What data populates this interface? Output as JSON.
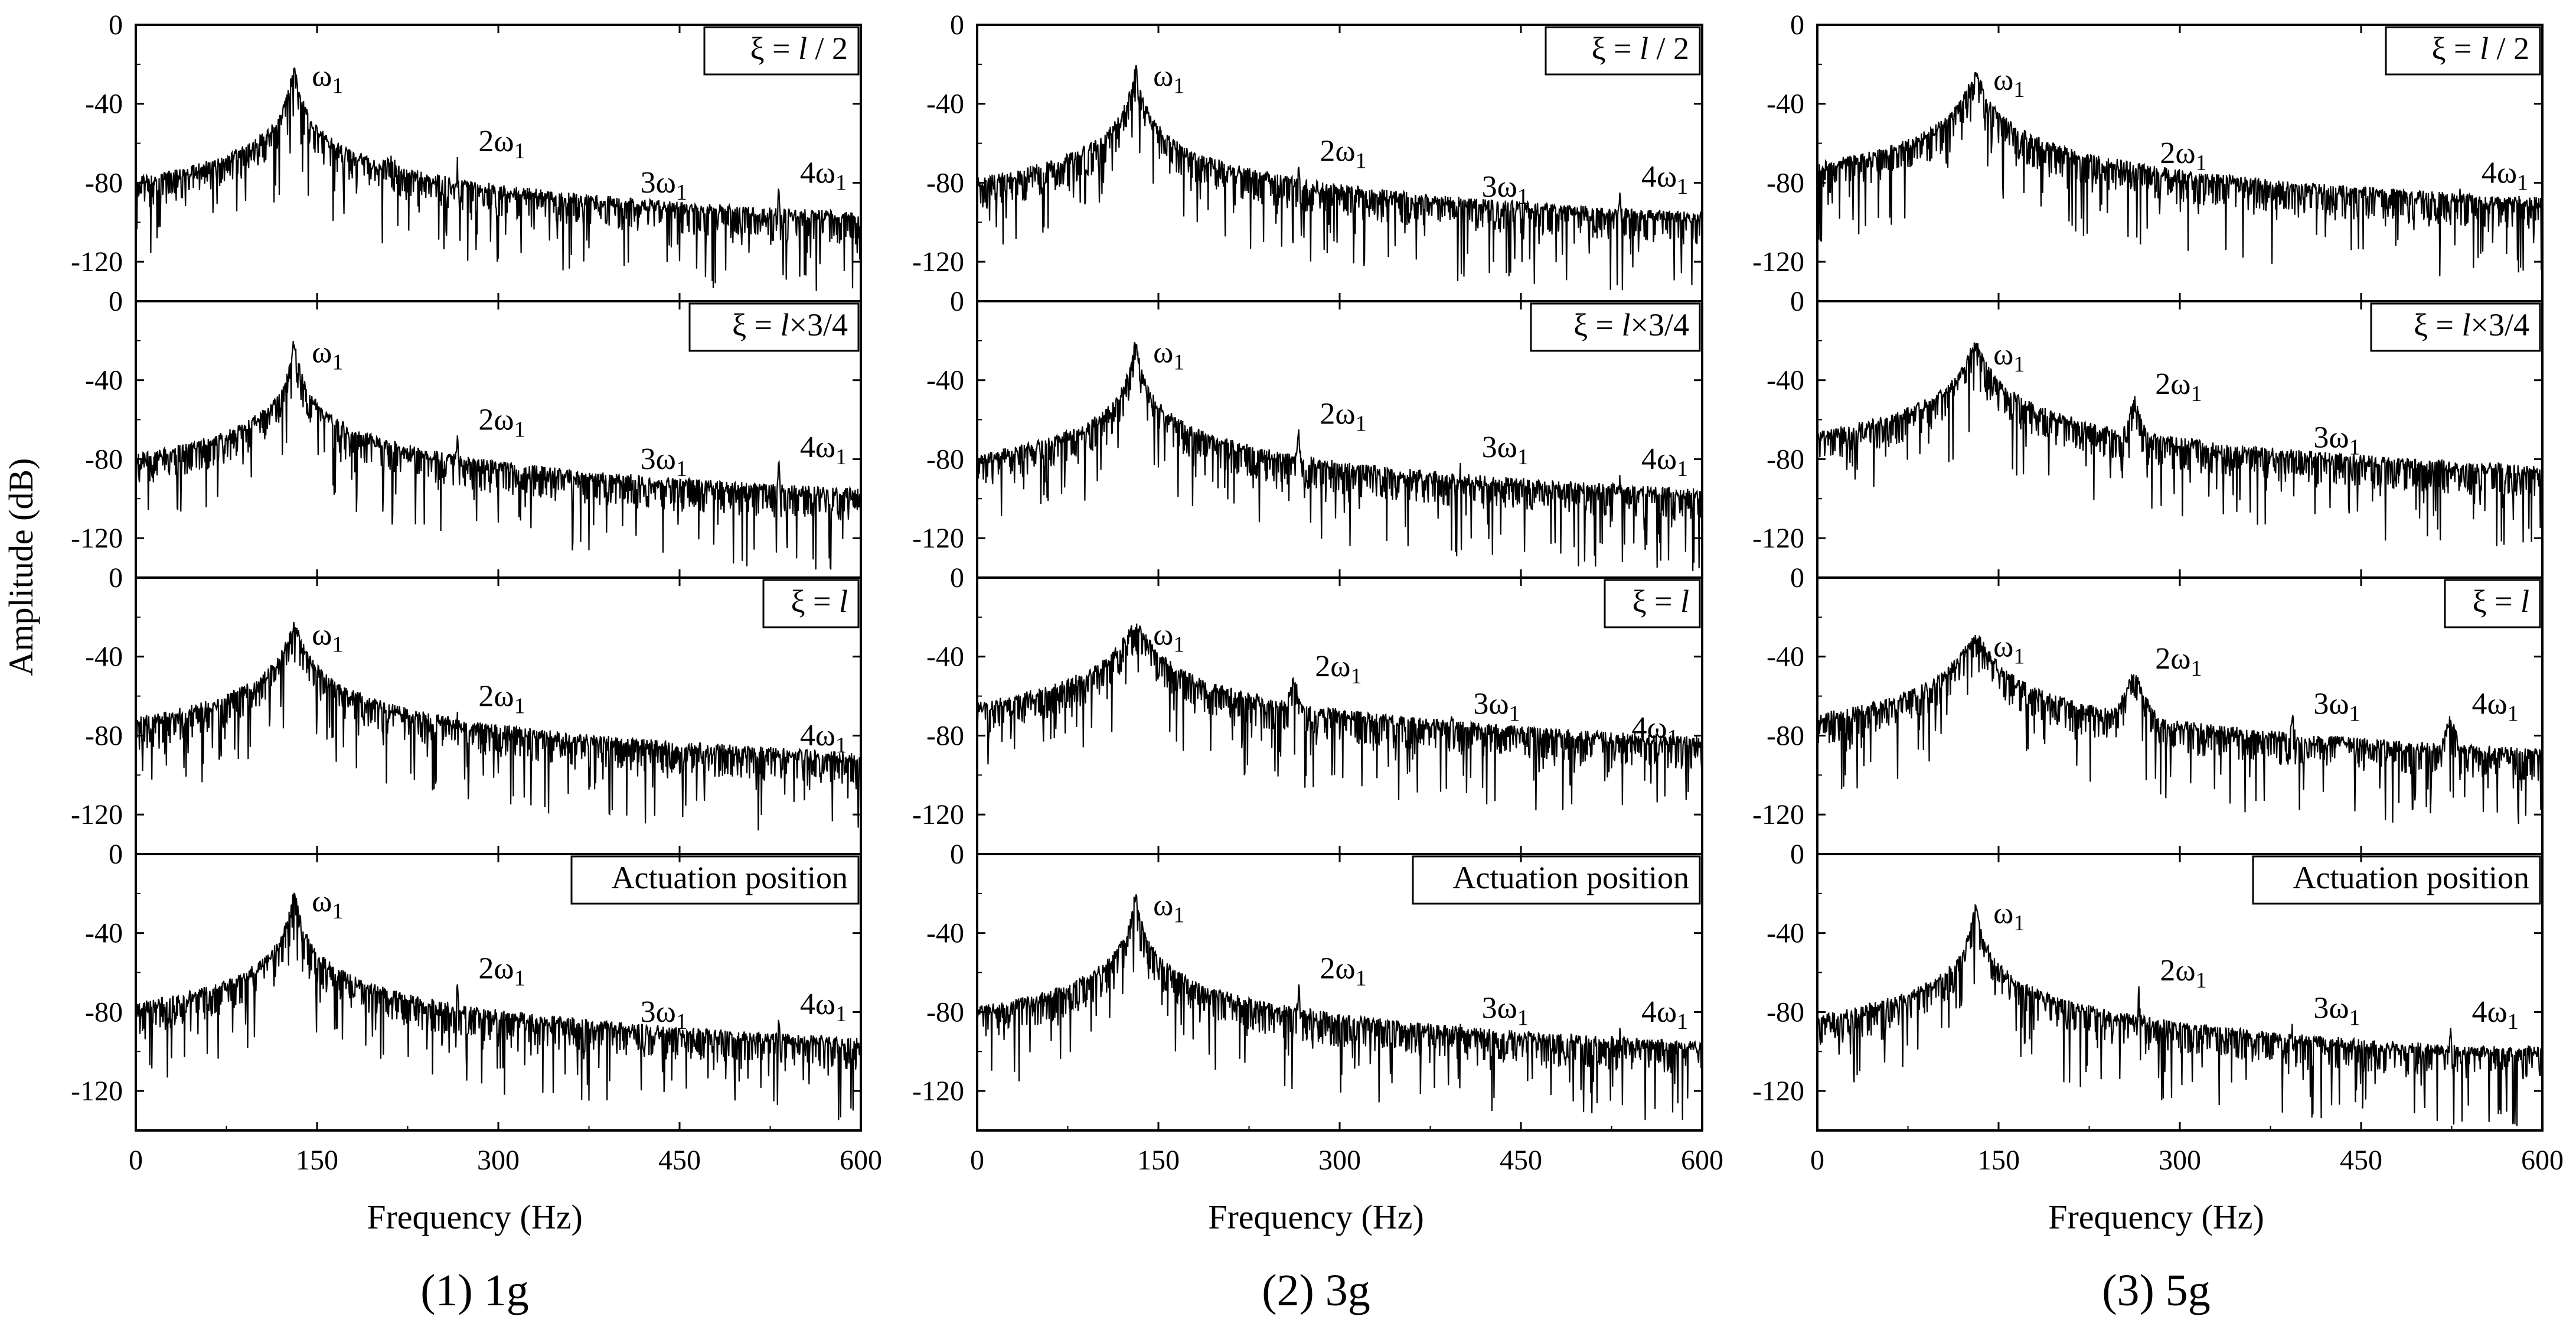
{
  "figure": {
    "ylabel": "Amplitude (dB)",
    "xlabel": "Frequency (Hz)"
  },
  "chart_data": [
    {
      "type": "line",
      "caption": "(1) 1g",
      "xlabel": "Frequency (Hz)",
      "ylabel": "Amplitude (dB)",
      "xlim": [
        0,
        600
      ],
      "ylim": [
        -140,
        0
      ],
      "xticks": [
        "0",
        "150",
        "300",
        "450",
        "600"
      ],
      "yticks": [
        "0",
        "-40",
        "-80",
        "-120"
      ],
      "panels": [
        {
          "legend": "ξ = l / 2",
          "noise_floor": -100,
          "peaks": [
            {
              "f": 131,
              "amp": -22,
              "label": "ω1",
              "width": 2
            },
            {
              "f": 266,
              "amp": -67,
              "label": "2ω1",
              "width": 0.6
            },
            {
              "f": 400,
              "amp": -88,
              "label": "3ω1",
              "width": 0.6
            },
            {
              "f": 532,
              "amp": -83,
              "label": "4ω1",
              "width": 0.6
            },
            {
              "f": 172,
              "amp": -83,
              "label": "",
              "width": 2
            },
            {
              "f": 209,
              "amp": -68,
              "label": "",
              "width": 7
            }
          ]
        },
        {
          "legend": "ξ =  l×3/4",
          "noise_floor": -100,
          "peaks": [
            {
              "f": 131,
              "amp": -22,
              "label": "ω1",
              "width": 2
            },
            {
              "f": 266,
              "amp": -68,
              "label": "2ω1",
              "width": 0.6
            },
            {
              "f": 400,
              "amp": -88,
              "label": "3ω1",
              "width": 0.6
            },
            {
              "f": 532,
              "amp": -82,
              "label": "4ω1",
              "width": 0.6
            }
          ]
        },
        {
          "legend": "ξ = l",
          "noise_floor": -100,
          "peaks": [
            {
              "f": 131,
              "amp": -25,
              "label": "ω1",
              "width": 4
            },
            {
              "f": 266,
              "amp": -68,
              "label": "2ω1",
              "width": 0.6
            },
            {
              "f": 532,
              "amp": -88,
              "label": "4ω1",
              "width": 0.6
            },
            {
              "f": 205,
              "amp": -85,
              "label": "",
              "width": 2
            }
          ]
        },
        {
          "legend": "Actuation position",
          "noise_floor": -100,
          "peaks": [
            {
              "f": 131,
              "amp": -20,
              "label": "ω1",
              "width": 2
            },
            {
              "f": 266,
              "amp": -66,
              "label": "2ω1",
              "width": 0.6
            },
            {
              "f": 400,
              "amp": -88,
              "label": "3ω1",
              "width": 0.6
            },
            {
              "f": 532,
              "amp": -84,
              "label": "4ω1",
              "width": 0.6
            },
            {
              "f": 207,
              "amp": -80,
              "label": "",
              "width": 2
            }
          ]
        }
      ]
    },
    {
      "type": "line",
      "caption": "(2) 3g",
      "xlabel": "Frequency (Hz)",
      "ylabel": "Amplitude (dB)",
      "xlim": [
        0,
        600
      ],
      "ylim": [
        -140,
        0
      ],
      "xticks": [
        "0",
        "150",
        "300",
        "450",
        "600"
      ],
      "yticks": [
        "0",
        "-40",
        "-80",
        "-120"
      ],
      "panels": [
        {
          "legend": "ξ = l / 2",
          "noise_floor": -100,
          "peaks": [
            {
              "f": 131,
              "amp": -22,
              "label": "ω1",
              "width": 2
            },
            {
              "f": 266,
              "amp": -72,
              "label": "2ω1",
              "width": 0.6
            },
            {
              "f": 400,
              "amp": -90,
              "label": "3ω1",
              "width": 0.6
            },
            {
              "f": 532,
              "amp": -85,
              "label": "4ω1",
              "width": 0.6
            },
            {
              "f": 205,
              "amp": -87,
              "label": "",
              "width": 3
            }
          ]
        },
        {
          "legend": "ξ =  l×3/4",
          "noise_floor": -100,
          "peaks": [
            {
              "f": 131,
              "amp": -22,
              "label": "ω1",
              "width": 2
            },
            {
              "f": 266,
              "amp": -65,
              "label": "2ω1",
              "width": 0.6
            },
            {
              "f": 400,
              "amp": -82,
              "label": "3ω1",
              "width": 0.6
            },
            {
              "f": 532,
              "amp": -88,
              "label": "4ω1",
              "width": 0.6
            }
          ]
        },
        {
          "legend": "ξ = l",
          "noise_floor": -100,
          "peaks": [
            {
              "f": 131,
              "amp": -25,
              "label": "ω1",
              "width": 7
            },
            {
              "f": 262,
              "amp": -53,
              "label": "2ω1",
              "width": 3
            },
            {
              "f": 393,
              "amp": -72,
              "label": "3ω1",
              "width": 1.5
            },
            {
              "f": 524,
              "amp": -84,
              "label": "4ω1",
              "width": 1
            }
          ]
        },
        {
          "legend": "Actuation position",
          "noise_floor": -100,
          "peaks": [
            {
              "f": 131,
              "amp": -22,
              "label": "ω1",
              "width": 2
            },
            {
              "f": 266,
              "amp": -66,
              "label": "2ω1",
              "width": 0.6
            },
            {
              "f": 400,
              "amp": -86,
              "label": "3ω1",
              "width": 0.6
            },
            {
              "f": 532,
              "amp": -88,
              "label": "4ω1",
              "width": 0.6
            },
            {
              "f": 204,
              "amp": -83,
              "label": "",
              "width": 2
            },
            {
              "f": 37,
              "amp": -80,
              "label": "",
              "width": 1
            }
          ]
        }
      ]
    },
    {
      "type": "line",
      "caption": "(3) 5g",
      "xlabel": "Frequency (Hz)",
      "ylabel": "Amplitude (dB)",
      "xlim": [
        0,
        600
      ],
      "ylim": [
        -140,
        0
      ],
      "xticks": [
        "0",
        "150",
        "300",
        "450",
        "600"
      ],
      "yticks": [
        "0",
        "-40",
        "-80",
        "-120"
      ],
      "panels": [
        {
          "legend": "ξ = l / 2",
          "noise_floor": -100,
          "peaks": [
            {
              "f": 131,
              "amp": -24,
              "label": "ω1",
              "width": 4
            },
            {
              "f": 266,
              "amp": -73,
              "label": "2ω1",
              "width": 0.6
            },
            {
              "f": 532,
              "amp": -83,
              "label": "4ω1",
              "width": 0.6
            },
            {
              "f": 207,
              "amp": -83,
              "label": "",
              "width": 2
            }
          ]
        },
        {
          "legend": "ξ =  l×3/4",
          "noise_floor": -100,
          "peaks": [
            {
              "f": 131,
              "amp": -23,
              "label": "ω1",
              "width": 5
            },
            {
              "f": 262,
              "amp": -50,
              "label": "2ω1",
              "width": 3
            },
            {
              "f": 393,
              "amp": -77,
              "label": "3ω1",
              "width": 0.8
            }
          ]
        },
        {
          "legend": "ξ = l",
          "noise_floor": -100,
          "peaks": [
            {
              "f": 131,
              "amp": -31,
              "label": "ω1",
              "width": 7
            },
            {
              "f": 262,
              "amp": -49,
              "label": "2ω1",
              "width": 4
            },
            {
              "f": 393,
              "amp": -72,
              "label": "3ω1",
              "width": 1.5
            },
            {
              "f": 524,
              "amp": -72,
              "label": "4ω1",
              "width": 3
            }
          ]
        },
        {
          "legend": "Actuation position",
          "noise_floor": -100,
          "peaks": [
            {
              "f": 131,
              "amp": -26,
              "label": "ω1",
              "width": 2
            },
            {
              "f": 266,
              "amp": -67,
              "label": "2ω1",
              "width": 0.6
            },
            {
              "f": 393,
              "amp": -86,
              "label": "3ω1",
              "width": 0.6
            },
            {
              "f": 524,
              "amp": -88,
              "label": "4ω1",
              "width": 0.6
            }
          ]
        }
      ]
    }
  ]
}
